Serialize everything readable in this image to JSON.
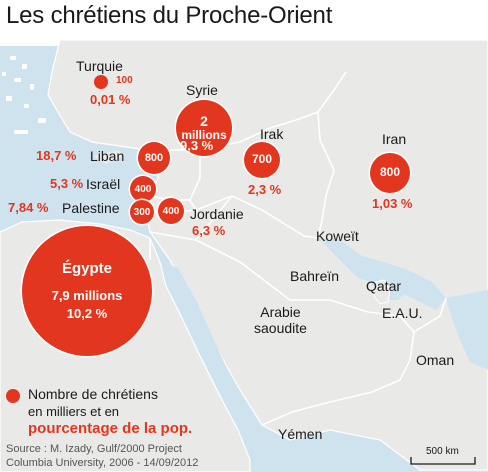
{
  "title": "Les chrétiens du Proche-Orient",
  "countries": {
    "turquie": {
      "name": "Turquie",
      "count": "100",
      "pct": "0,01 %"
    },
    "syrie": {
      "name": "Syrie",
      "count_line1": "2",
      "count_line2": "millions",
      "pct": "9,3 %"
    },
    "irak": {
      "name": "Irak",
      "count": "700",
      "pct": "2,3 %"
    },
    "iran": {
      "name": "Iran",
      "count": "800",
      "pct": "1,03 %"
    },
    "liban": {
      "name": "Liban",
      "count": "800",
      "pct": "18,7 %"
    },
    "israel": {
      "name": "Israël",
      "count": "400",
      "pct": "5,3 %"
    },
    "palestine": {
      "name": "Palestine",
      "count": "300",
      "pct": "7,84 %"
    },
    "jordanie": {
      "name": "Jordanie",
      "count": "400",
      "pct": "6,3 %"
    },
    "egypte": {
      "name": "Égypte",
      "count": "7,9 millions",
      "pct": "10,2 %"
    }
  },
  "labels": {
    "koweit": "Koweït",
    "bahrein": "Bahreïn",
    "qatar": "Qatar",
    "eau": "E.A.U.",
    "arabie_line1": "Arabie",
    "arabie_line2": "saoudite",
    "oman": "Oman",
    "yemen": "Yémen"
  },
  "legend": {
    "line1": "Nombre de chrétiens",
    "line2": "en milliers et en",
    "line3": "pourcentage de la pop."
  },
  "source": {
    "line1": "Source : M. Izady, Gulf/2000 Project",
    "line2": "Columbia University, 2006 - 14/09/2012"
  },
  "scale": "500 km",
  "colors": {
    "sea": "#cfe3ef",
    "land": "#e9e9e7",
    "border": "#ffffff",
    "accent": "#e2361e",
    "text": "#1a1a1a"
  }
}
